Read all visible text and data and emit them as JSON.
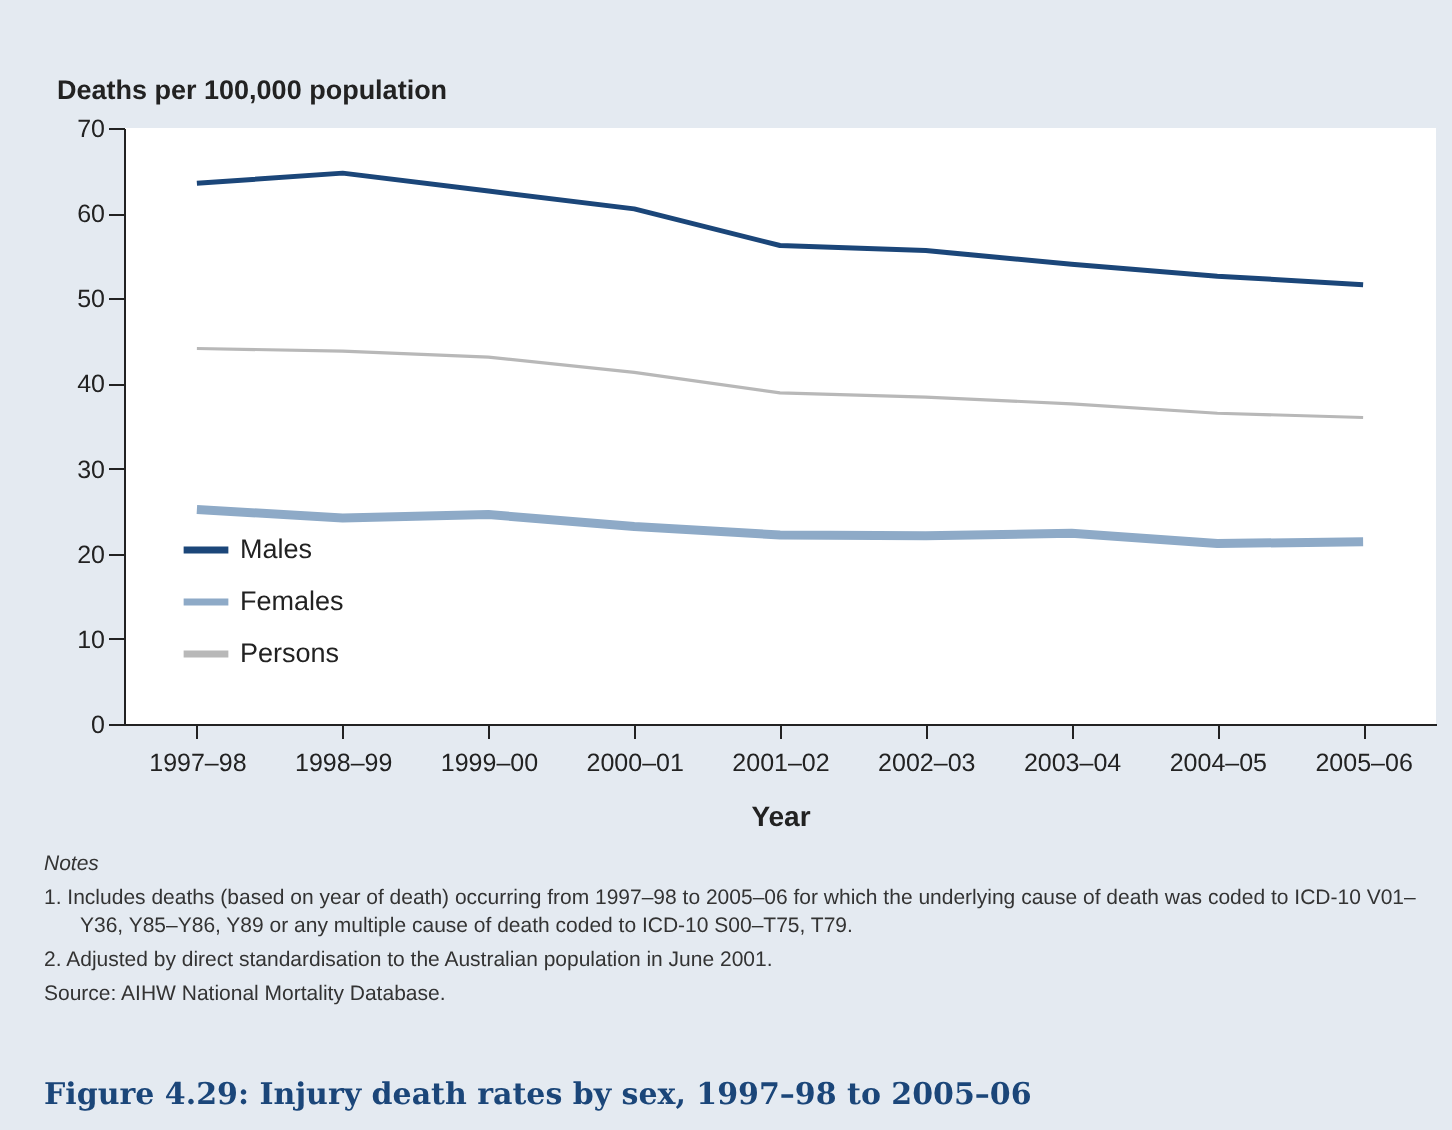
{
  "chart_data": {
    "type": "line",
    "title": "Figure 4.29: Injury death rates by sex, 1997–98 to 2005–06",
    "xlabel": "Year",
    "ylabel": "Deaths per 100,000 population",
    "categories": [
      "1997–98",
      "1998–99",
      "1999–00",
      "2000–01",
      "2001–02",
      "2002–03",
      "2003–04",
      "2004–05",
      "2005–06"
    ],
    "series": [
      {
        "name": "Males",
        "color": "#1b4679",
        "values": [
          63.5,
          64.7,
          62.6,
          60.5,
          56.2,
          55.6,
          54.0,
          52.6,
          51.6
        ]
      },
      {
        "name": "Females",
        "color": "#8eaac7",
        "values": [
          25.2,
          24.2,
          24.6,
          23.2,
          22.2,
          22.1,
          22.4,
          21.2,
          21.4
        ]
      },
      {
        "name": "Persons",
        "color": "#b8b8b8",
        "values": [
          44.1,
          43.8,
          43.1,
          41.3,
          38.9,
          38.4,
          37.6,
          36.5,
          36.0
        ]
      }
    ],
    "ylim": [
      0,
      70
    ],
    "yticks": [
      0,
      10,
      20,
      30,
      40,
      50,
      60,
      70
    ],
    "grid": false,
    "legend": "bottom left",
    "marker": "none",
    "line_style": "solid",
    "annotations": [
      "Notes",
      "1. Includes deaths (based on year of death) occurring from 1997–98 to 2005–06 for which the underlying cause of death was coded to ICD-10 V01–Y36, Y85–Y86, Y89 or any multiple cause of death coded to ICD-10 S00–T75, T79.",
      "2. Adjusted by direct standardisation to the Australian population in June 2001.",
      "Source: AIHW National Mortality Database."
    ]
  }
}
